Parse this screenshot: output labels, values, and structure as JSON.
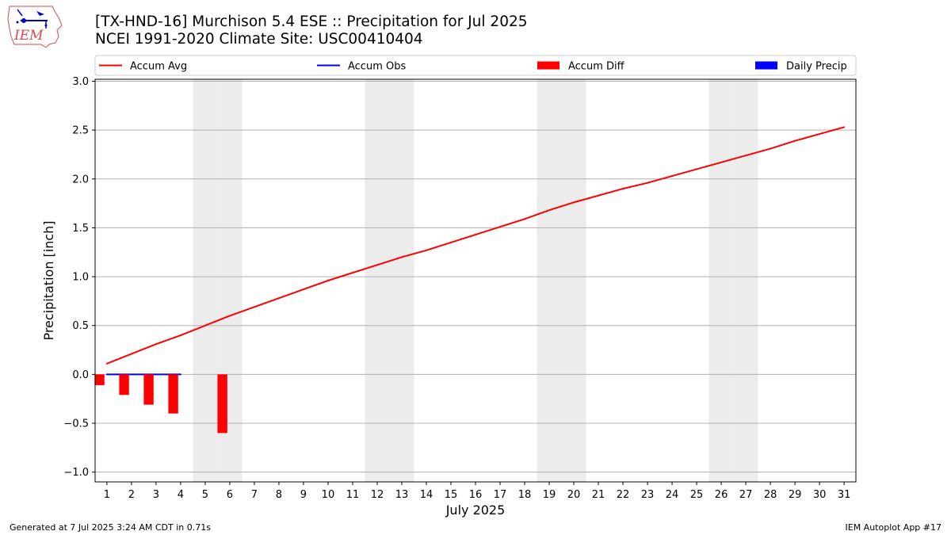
{
  "header": {
    "title_line1": "[TX-HND-16] Murchison 5.4 ESE :: Precipitation for Jul 2025",
    "title_line2": "NCEI 1991-2020 Climate Site: USC00410404",
    "logo_text": "IEM"
  },
  "footer": {
    "left": "Generated at 7 Jul 2025 3:24 AM CDT in 0.71s",
    "right": "IEM Autoplot App #17"
  },
  "colors": {
    "accum_avg": "#ff0000",
    "accum_obs": "#0000ff",
    "accum_diff": "#ff0000",
    "daily_precip": "#0000ff",
    "weekend_shade": "#ececec",
    "grid": "#b0b0b0"
  },
  "chart_data": {
    "type": "line",
    "xlabel": "July 2025",
    "ylabel": "Precipitation [inch]",
    "ylim": [
      -1.1,
      3.02
    ],
    "yticks": [
      -1.0,
      -0.5,
      0.0,
      0.5,
      1.0,
      1.5,
      2.0,
      2.5,
      3.0
    ],
    "ytick_labels": [
      "−1.0",
      "−0.5",
      "0.0",
      "0.5",
      "1.0",
      "1.5",
      "2.0",
      "2.5",
      "3.0"
    ],
    "x": [
      1,
      2,
      3,
      4,
      5,
      6,
      7,
      8,
      9,
      10,
      11,
      12,
      13,
      14,
      15,
      16,
      17,
      18,
      19,
      20,
      21,
      22,
      23,
      24,
      25,
      26,
      27,
      28,
      29,
      30,
      31
    ],
    "weekend_days": [
      5,
      6,
      12,
      13,
      19,
      20,
      26,
      27
    ],
    "legend": {
      "placement": "top",
      "entries": [
        {
          "label": "Accum Avg",
          "kind": "line",
          "series": "accum_avg"
        },
        {
          "label": "Accum Obs",
          "kind": "line",
          "series": "accum_obs"
        },
        {
          "label": "Accum Diff",
          "kind": "bar",
          "series": "accum_diff"
        },
        {
          "label": "Daily Precip",
          "kind": "bar",
          "series": "daily_precip"
        }
      ]
    },
    "series": [
      {
        "name": "Accum Avg",
        "type": "line",
        "x": [
          1,
          2,
          3,
          4,
          5,
          6,
          7,
          8,
          9,
          10,
          11,
          12,
          13,
          14,
          15,
          16,
          17,
          18,
          19,
          20,
          21,
          22,
          23,
          24,
          25,
          26,
          27,
          28,
          29,
          30,
          31
        ],
        "values": [
          0.11,
          0.21,
          0.31,
          0.4,
          0.5,
          0.6,
          0.69,
          0.78,
          0.87,
          0.96,
          1.04,
          1.12,
          1.2,
          1.27,
          1.35,
          1.43,
          1.51,
          1.59,
          1.68,
          1.76,
          1.83,
          1.9,
          1.96,
          2.03,
          2.1,
          2.17,
          2.24,
          2.31,
          2.39,
          2.46,
          2.53
        ]
      },
      {
        "name": "Accum Obs",
        "type": "line",
        "x": [
          1,
          2,
          3,
          4
        ],
        "values": [
          0.0,
          0.0,
          0.0,
          0.0
        ]
      },
      {
        "name": "Accum Diff",
        "type": "bar",
        "x": [
          1,
          2,
          3,
          4,
          6
        ],
        "values": [
          -0.11,
          -0.21,
          -0.31,
          -0.4,
          -0.6
        ]
      },
      {
        "name": "Daily Precip",
        "type": "bar",
        "x": [],
        "values": []
      }
    ],
    "grid": "y"
  }
}
